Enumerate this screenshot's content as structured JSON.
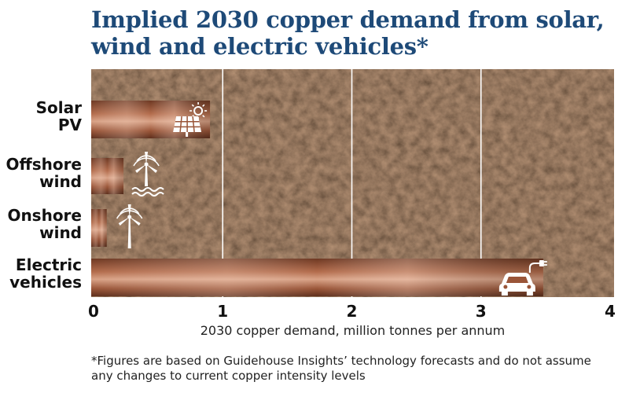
{
  "title_lines": [
    "Implied 2030 copper demand from solar,",
    "wind and electric vehicles*"
  ],
  "colors": {
    "title": "#1e4a78",
    "soil_dark": "#2a1a12",
    "soil_mid": "#4a3021",
    "copper_light": "#e2b49a",
    "copper_dark": "#7a3f27",
    "gridline": "#ffffff"
  },
  "chart_data": {
    "type": "bar",
    "orientation": "horizontal",
    "categories": [
      {
        "label_lines": [
          "Solar",
          "PV"
        ],
        "icon": "solar-panel-sun-icon"
      },
      {
        "label_lines": [
          "Offshore",
          "wind"
        ],
        "icon": "offshore-wind-turbine-icon"
      },
      {
        "label_lines": [
          "Onshore",
          "wind"
        ],
        "icon": "onshore-wind-turbine-icon"
      },
      {
        "label_lines": [
          "Electric",
          "vehicles"
        ],
        "icon": "electric-car-icon"
      }
    ],
    "values": [
      0.92,
      0.25,
      0.12,
      3.5
    ],
    "xlim": [
      0,
      4
    ],
    "xticks": [
      "0",
      "1",
      "2",
      "3",
      "4"
    ],
    "xlabel": "2030 copper demand, million tonnes per annum",
    "grid": "vertical"
  },
  "footnote_lines": [
    "*Figures are based on Guidehouse Insights’ technology forecasts and do not assume",
    "any changes to current copper intensity levels"
  ]
}
